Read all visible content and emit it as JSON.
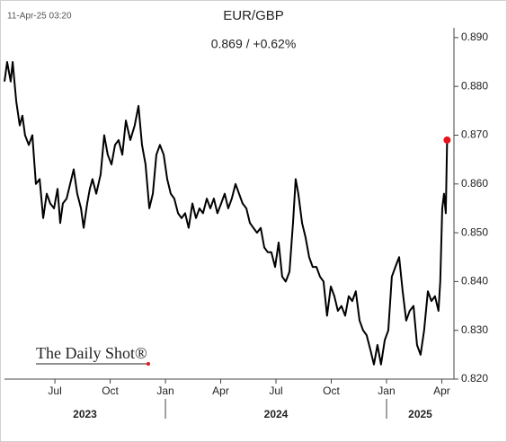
{
  "chart_data": {
    "type": "line",
    "title": "EUR/GBP",
    "subtitle": "0.869  /  +0.62%",
    "timestamp": "11-Apr-25 03:20",
    "source": "The Daily Shot®",
    "xlim": [
      2023.272,
      2025.305
    ],
    "ylim": [
      0.82,
      0.892
    ],
    "xticks": [
      {
        "value": 2023.5,
        "label": "Jul"
      },
      {
        "value": 2023.75,
        "label": "Oct"
      },
      {
        "value": 2024.0,
        "label": "Jan"
      },
      {
        "value": 2024.25,
        "label": "Apr"
      },
      {
        "value": 2024.5,
        "label": "Jul"
      },
      {
        "value": 2024.75,
        "label": "Oct"
      },
      {
        "value": 2025.0,
        "label": "Jan"
      },
      {
        "value": 2025.25,
        "label": "Apr"
      }
    ],
    "yticks": [
      {
        "value": 0.82,
        "label": "0.820"
      },
      {
        "value": 0.83,
        "label": "0.830"
      },
      {
        "value": 0.84,
        "label": "0.840"
      },
      {
        "value": 0.85,
        "label": "0.850"
      },
      {
        "value": 0.86,
        "label": "0.860"
      },
      {
        "value": 0.87,
        "label": "0.870"
      },
      {
        "value": 0.88,
        "label": "0.880"
      },
      {
        "value": 0.89,
        "label": "0.890"
      }
    ],
    "year_labels": [
      "2023",
      "2024",
      "2025"
    ],
    "year_breaks": [
      2024.0,
      2025.0
    ],
    "series": [
      {
        "name": "EUR/GBP",
        "color": "#000000",
        "end_marker_color": "#e8141c",
        "x": [
          2023.272,
          2023.284,
          2023.3,
          2023.309,
          2023.325,
          2023.341,
          2023.353,
          2023.365,
          2023.382,
          2023.398,
          2023.414,
          2023.431,
          2023.447,
          2023.463,
          2023.479,
          2023.496,
          2023.512,
          2023.524,
          2023.536,
          2023.553,
          2023.569,
          2023.585,
          2023.601,
          2023.618,
          2023.63,
          2023.646,
          2023.658,
          2023.67,
          2023.687,
          2023.707,
          2023.723,
          2023.739,
          2023.756,
          2023.772,
          2023.788,
          2023.805,
          2023.821,
          2023.841,
          2023.861,
          2023.878,
          2023.894,
          2023.91,
          2023.927,
          2023.943,
          2023.959,
          2023.975,
          2023.992,
          2024.008,
          2024.024,
          2024.04,
          2024.057,
          2024.073,
          2024.089,
          2024.105,
          2024.122,
          2024.138,
          2024.154,
          2024.17,
          2024.187,
          2024.203,
          2024.219,
          2024.235,
          2024.252,
          2024.268,
          2024.284,
          2024.3,
          2024.317,
          2024.333,
          2024.349,
          2024.366,
          2024.382,
          2024.398,
          2024.414,
          2024.431,
          2024.447,
          2024.463,
          2024.479,
          2024.496,
          2024.512,
          2024.528,
          2024.544,
          2024.561,
          2024.577,
          2024.589,
          2024.601,
          2024.618,
          2024.634,
          2024.65,
          2024.666,
          2024.683,
          2024.699,
          2024.715,
          2024.731,
          2024.748,
          2024.764,
          2024.78,
          2024.796,
          2024.813,
          2024.829,
          2024.845,
          2024.861,
          2024.878,
          2024.894,
          2024.91,
          2024.927,
          2024.943,
          2024.959,
          2024.975,
          2024.992,
          2025.008,
          2025.024,
          2025.04,
          2025.057,
          2025.073,
          2025.089,
          2025.105,
          2025.122,
          2025.138,
          2025.154,
          2025.17,
          2025.187,
          2025.203,
          2025.219,
          2025.235,
          2025.243,
          2025.252,
          2025.26,
          2025.268,
          2025.274
        ],
        "values": [
          0.881,
          0.885,
          0.881,
          0.885,
          0.877,
          0.872,
          0.874,
          0.87,
          0.868,
          0.87,
          0.86,
          0.861,
          0.853,
          0.858,
          0.856,
          0.855,
          0.859,
          0.852,
          0.856,
          0.857,
          0.86,
          0.863,
          0.858,
          0.855,
          0.851,
          0.856,
          0.859,
          0.861,
          0.858,
          0.862,
          0.87,
          0.866,
          0.864,
          0.868,
          0.869,
          0.866,
          0.873,
          0.869,
          0.872,
          0.876,
          0.868,
          0.864,
          0.855,
          0.858,
          0.866,
          0.868,
          0.866,
          0.861,
          0.858,
          0.857,
          0.854,
          0.853,
          0.854,
          0.851,
          0.856,
          0.853,
          0.855,
          0.854,
          0.857,
          0.855,
          0.857,
          0.854,
          0.856,
          0.858,
          0.855,
          0.857,
          0.86,
          0.858,
          0.856,
          0.855,
          0.852,
          0.851,
          0.85,
          0.851,
          0.847,
          0.846,
          0.846,
          0.843,
          0.848,
          0.841,
          0.84,
          0.842,
          0.852,
          0.861,
          0.858,
          0.852,
          0.849,
          0.845,
          0.843,
          0.843,
          0.841,
          0.84,
          0.833,
          0.839,
          0.837,
          0.834,
          0.835,
          0.833,
          0.837,
          0.836,
          0.838,
          0.832,
          0.83,
          0.829,
          0.826,
          0.823,
          0.827,
          0.823,
          0.828,
          0.83,
          0.841,
          0.843,
          0.845,
          0.838,
          0.832,
          0.834,
          0.835,
          0.827,
          0.825,
          0.83,
          0.838,
          0.836,
          0.837,
          0.834,
          0.84,
          0.855,
          0.858,
          0.854,
          0.869
        ]
      }
    ]
  }
}
